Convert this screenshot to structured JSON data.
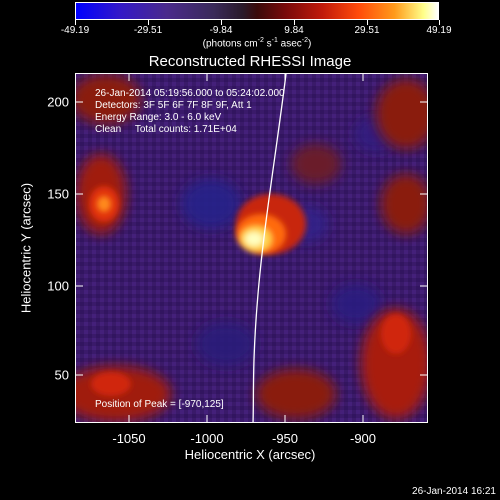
{
  "title": "Reconstructed RHESSI Image",
  "colorbar": {
    "tick_labels": [
      "-49.19",
      "-29.51",
      "-9.84",
      "9.84",
      "29.51",
      "49.19"
    ],
    "units_text": "(photons cm",
    "units_exp1": "-2",
    "units_mid": " s",
    "units_exp2": "-1",
    "units_mid2": " asec",
    "units_exp3": "-2",
    "units_end": ")"
  },
  "info": {
    "line1": "26-Jan-2014 05:19:56.000 to 05:24:02.000",
    "line2": "Detectors: 3F 5F 6F 7F 8F 9F, Att 1",
    "line3": "Energy Range: 3.0 - 6.0 keV",
    "line4": "Clean     Total counts: 1.71E+04"
  },
  "peak_text": "Position of Peak = [-970,125]",
  "axes": {
    "xlabel": "Heliocentric X (arcsec)",
    "ylabel": "Heliocentric Y (arcsec)",
    "xticks": [
      "-1050",
      "-1000",
      "-950",
      "-900"
    ],
    "yticks": [
      "200",
      "150",
      "100",
      "50"
    ]
  },
  "timestamp": "26-Jan-2014 16:21",
  "colors": {
    "background": "#000000",
    "purple": "#3a1a6a",
    "red": "#c01a0a",
    "yellow": "#ffff8a"
  }
}
